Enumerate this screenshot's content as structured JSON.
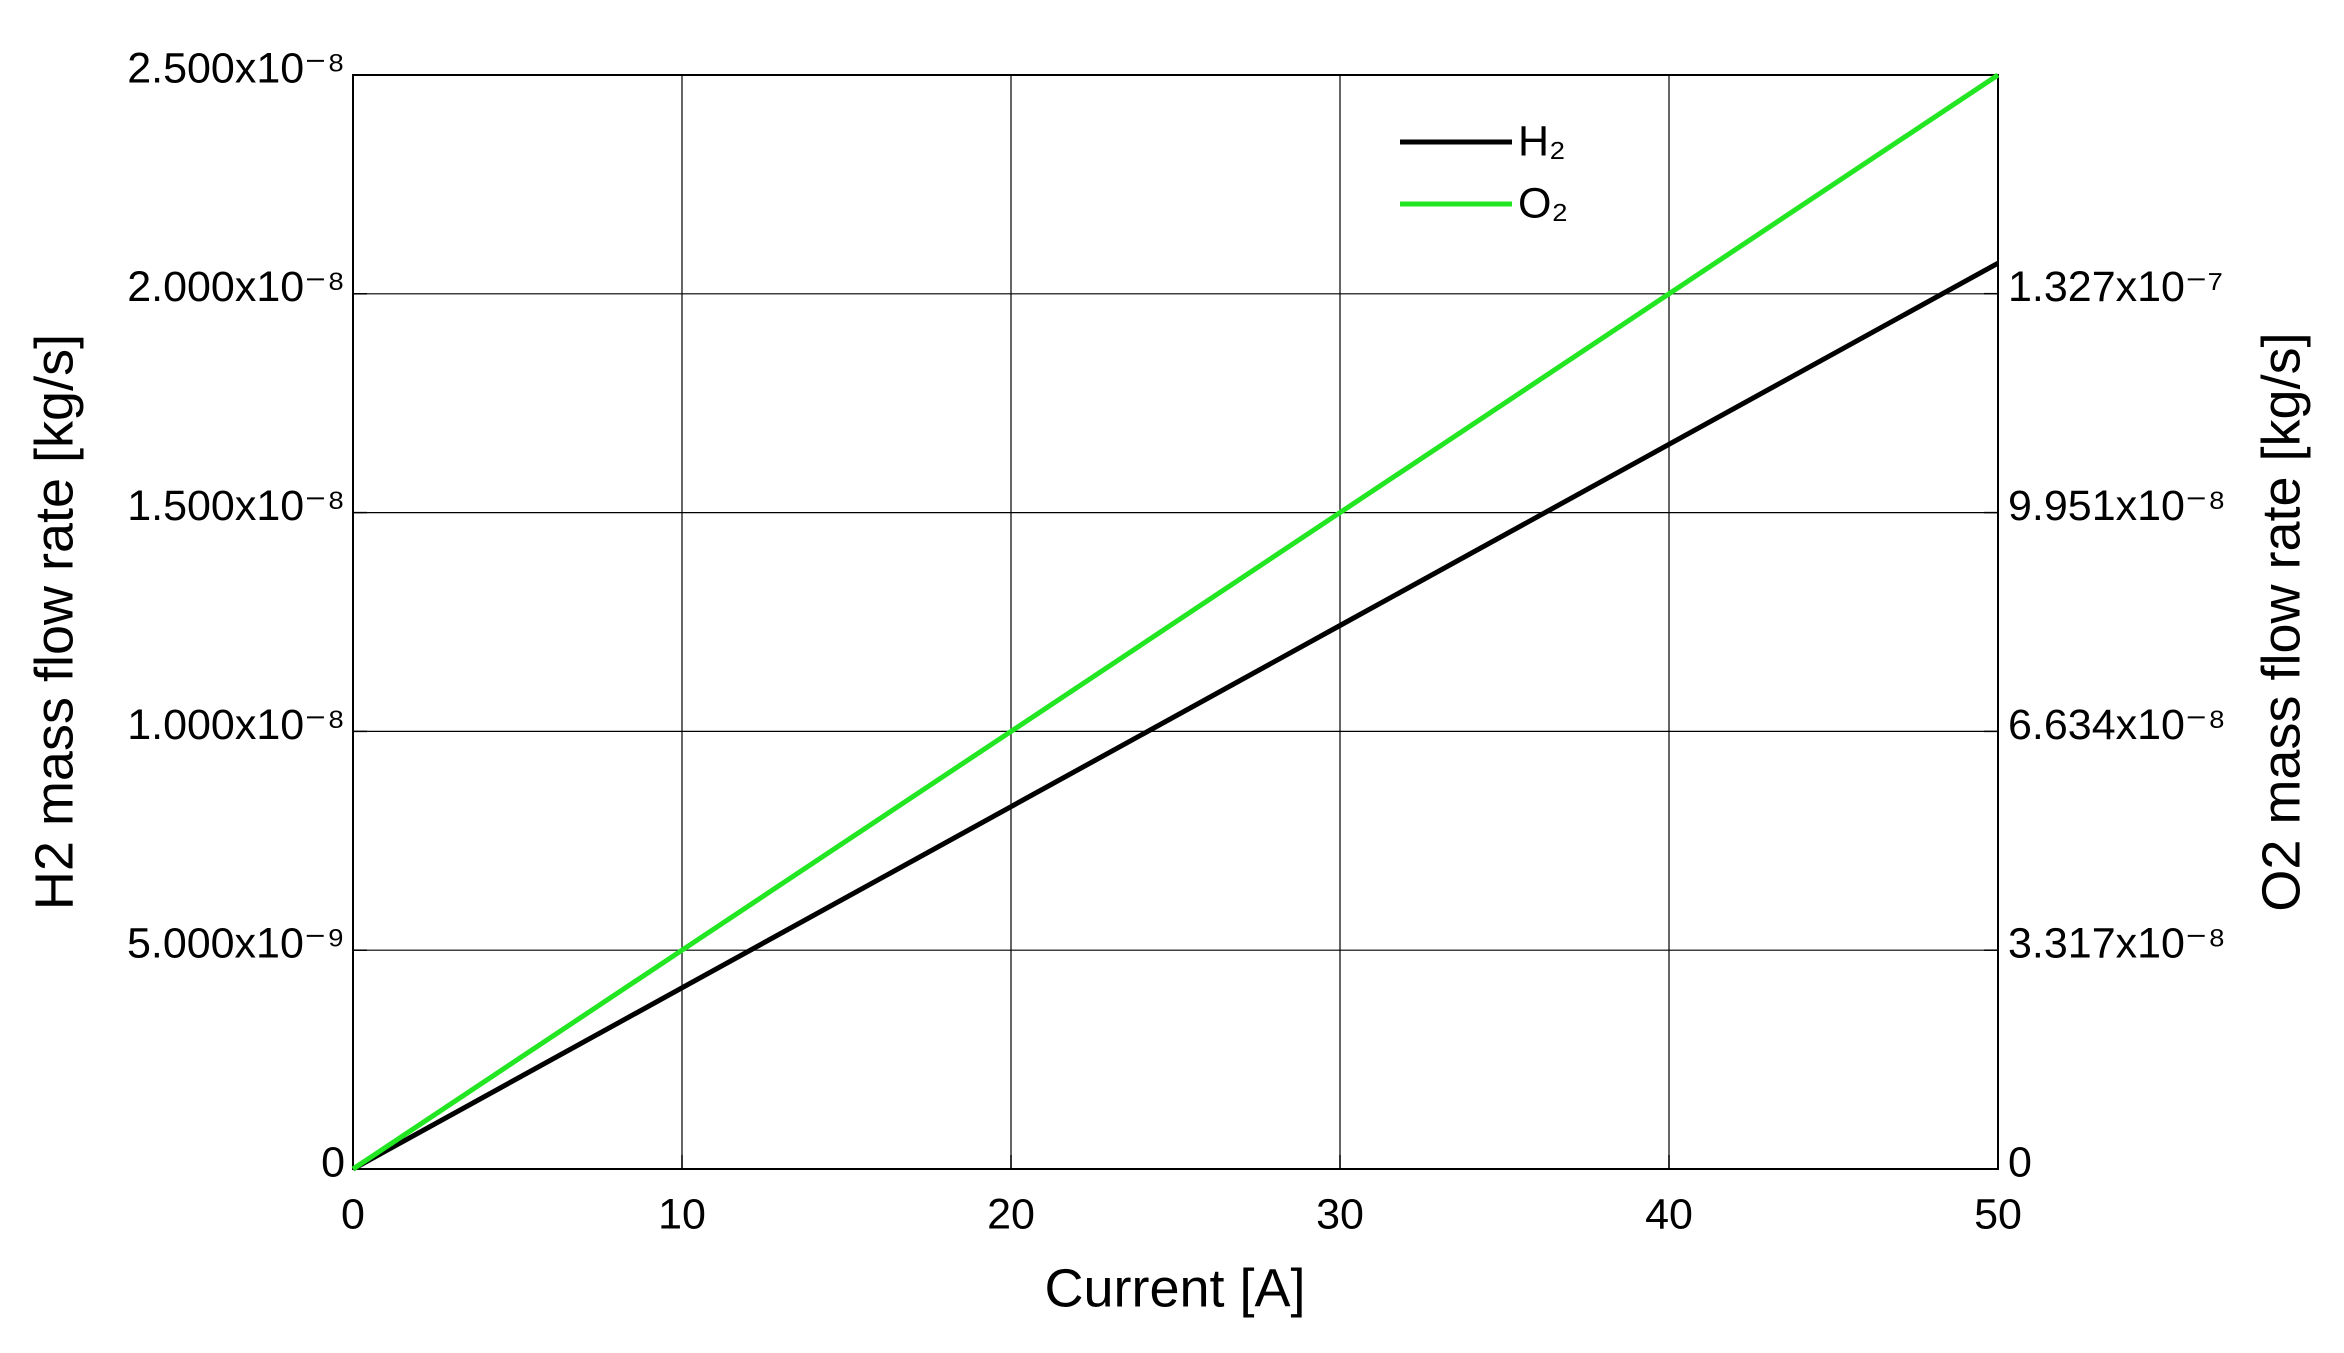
{
  "chart_data": {
    "type": "line",
    "x_label": "Current [A]",
    "y_label": "H2 mass flow rate [kg/s]",
    "y2_label": "O2 mass flow rate [kg/s]",
    "x": [
      0,
      10,
      20,
      30,
      40,
      50
    ],
    "series": [
      {
        "name": "H₂",
        "color": "#000000",
        "values": [
          0,
          4.14e-09,
          8.28e-09,
          1.242e-08,
          1.656e-08,
          2.07e-08
        ]
      },
      {
        "name": "O₂",
        "color": "#22e622",
        "axis": "y2",
        "values": [
          0,
          3.317e-08,
          6.634e-08,
          9.951e-08,
          1.3268e-07,
          1.6585e-07
        ]
      }
    ],
    "xlim": [
      0,
      50
    ],
    "xticks": [
      0,
      10,
      20,
      30,
      40,
      50
    ],
    "ylim": [
      0,
      2.5e-08
    ],
    "yticks": [
      0,
      {
        "value": 5e-09,
        "label": "5.000x10⁻⁹"
      },
      {
        "value": 1e-08,
        "label": "1.000x10⁻⁸"
      },
      {
        "value": 1.5e-08,
        "label": "1.500x10⁻⁸"
      },
      {
        "value": 2e-08,
        "label": "2.000x10⁻⁸"
      },
      {
        "value": 2.5e-08,
        "label": "2.500x10⁻⁸"
      }
    ],
    "y2lim": [
      0,
      1.6585e-07
    ],
    "y2ticks": [
      0,
      {
        "value": 3.317e-08,
        "label": "3.317x10⁻⁸"
      },
      {
        "value": 6.634e-08,
        "label": "6.634x10⁻⁸"
      },
      {
        "value": 9.951e-08,
        "label": "9.951x10⁻⁸"
      },
      {
        "value": 1.327e-07,
        "label": "1.327x10⁻⁷"
      }
    ],
    "grid": true,
    "legend": "upper center"
  }
}
